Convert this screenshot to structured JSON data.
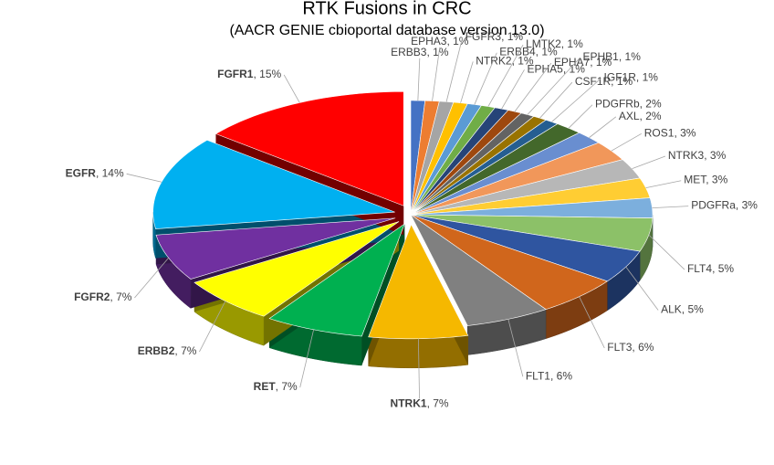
{
  "chart_data": {
    "type": "pie3d",
    "title": "RTK Fusions in CRC",
    "subtitle": "(AACR GENIE cbioportal database version 13.0)",
    "categories": [
      "ERBB3",
      "EPHA3",
      "FGFR3",
      "NTRK2",
      "ERBB4",
      "LMTK2",
      "EPHA5",
      "EPHA7",
      "EPHB1",
      "CSF1R",
      "IGF1R",
      "PDGFRb",
      "AXL",
      "ROS1",
      "NTRK3",
      "MET",
      "PDGFRa",
      "FLT4",
      "ALK",
      "FLT3",
      "FLT1",
      "NTRK1",
      "RET",
      "ERBB2",
      "FGFR2",
      "EGFR",
      "FGFR1"
    ],
    "values": [
      1,
      1,
      1,
      1,
      1,
      1,
      1,
      1,
      1,
      1,
      1,
      2,
      2,
      3,
      3,
      3,
      3,
      5,
      5,
      6,
      6,
      7,
      7,
      7,
      7,
      14,
      15
    ],
    "value_labels": [
      "1%",
      "1%",
      "1%",
      "1%",
      "1%",
      "1%",
      "1%",
      "1%",
      "1%",
      "1%",
      "1%",
      "2%",
      "2%",
      "3%",
      "3%",
      "3%",
      "3%",
      "5%",
      "5%",
      "6%",
      "6%",
      "7%",
      "7%",
      "7%",
      "7%",
      "14%",
      "15%"
    ],
    "colors": [
      "#4472c4",
      "#ed7d31",
      "#a5a5a5",
      "#ffc000",
      "#5b9bd5",
      "#70ad47",
      "#264478",
      "#9e480e",
      "#636363",
      "#997300",
      "#255e91",
      "#43682b",
      "#698ed0",
      "#f1975a",
      "#b7b7b7",
      "#ffcd33",
      "#7cafdd",
      "#8cc168",
      "#2f55a0",
      "#d0661c",
      "#808080",
      "#f5b800",
      "#00b050",
      "#ffff00",
      "#7030a0",
      "#00b0f0",
      "#ff0000"
    ],
    "bold": [
      "FGFR1",
      "EGFR",
      "FGFR2",
      "ERBB2",
      "RET",
      "NTRK1"
    ]
  }
}
